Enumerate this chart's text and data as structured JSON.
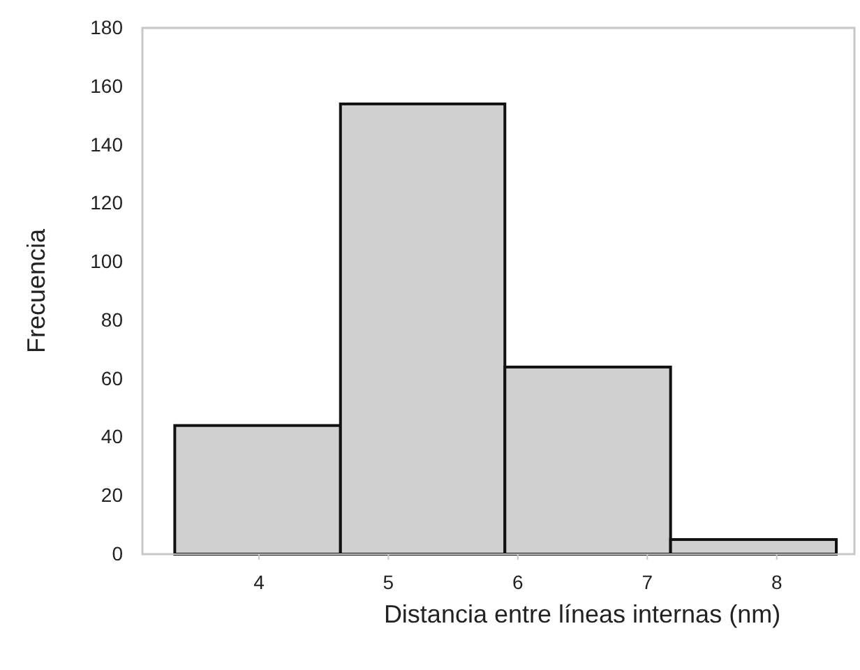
{
  "chart_data": {
    "type": "histogram",
    "xlabel": "Distancia entre líneas internas (nm)",
    "ylabel": "Frecuencia",
    "bins": [
      3.35,
      4.63,
      5.9,
      7.18,
      8.46
    ],
    "values": [
      44,
      154,
      64,
      5
    ],
    "color": "#d0d0d0",
    "xlim": [
      3.1,
      8.6
    ],
    "xticks": [
      4,
      5,
      6,
      7,
      8
    ],
    "ylim": [
      0,
      180
    ],
    "yticks": [
      0,
      20,
      40,
      60,
      80,
      100,
      120,
      140,
      160,
      180
    ],
    "grid": false
  }
}
